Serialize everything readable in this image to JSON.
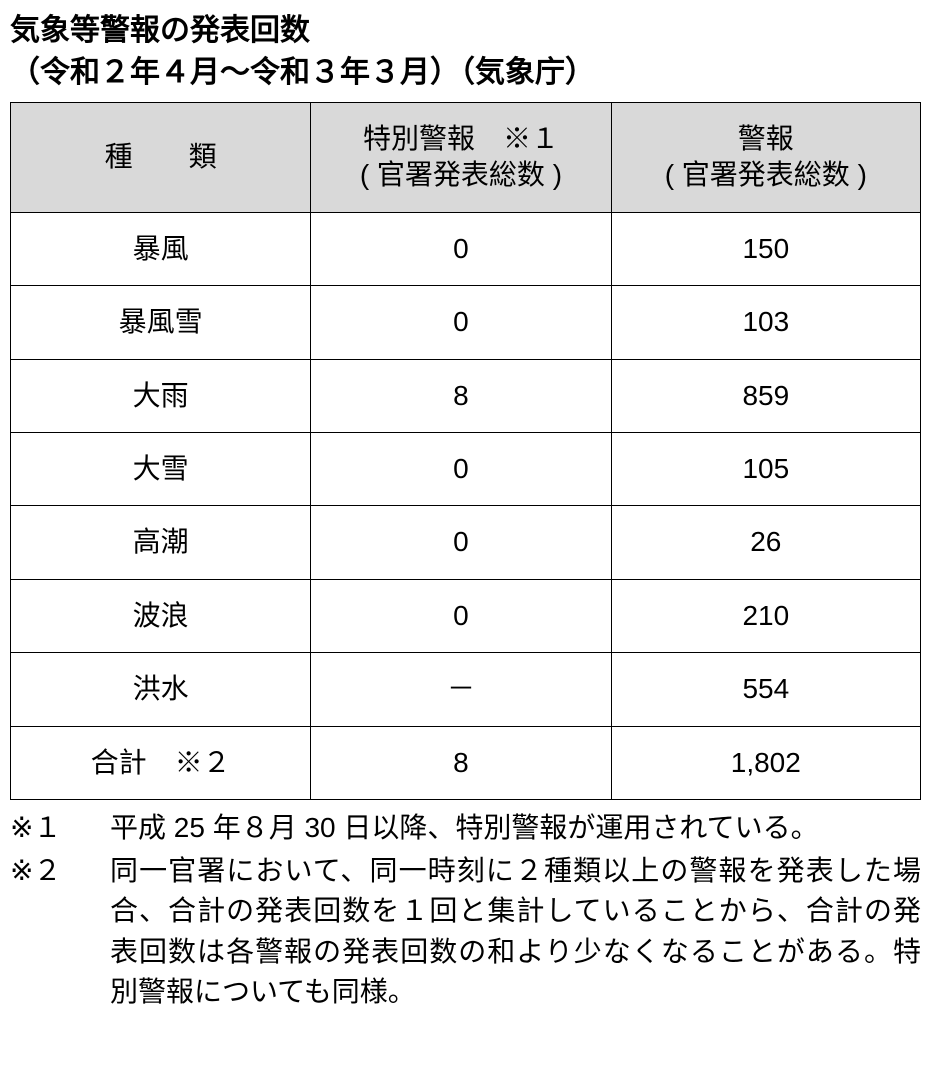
{
  "title_line1": "気象等警報の発表回数",
  "title_line2": "（令和２年４月～令和３年３月）（気象庁）",
  "table": {
    "header_bg": "#d9d9d9",
    "border_color": "#000000",
    "columns": [
      {
        "label_line1": "種　　類",
        "label_line2": ""
      },
      {
        "label_line1": "特別警報　※１",
        "label_line2": "( 官署発表総数 )"
      },
      {
        "label_line1": "警報",
        "label_line2": "( 官署発表総数 )"
      }
    ],
    "rows": [
      {
        "type": "暴風",
        "special": "0",
        "warning": "150"
      },
      {
        "type": "暴風雪",
        "special": "0",
        "warning": "103"
      },
      {
        "type": "大雨",
        "special": "8",
        "warning": "859"
      },
      {
        "type": "大雪",
        "special": "0",
        "warning": "105"
      },
      {
        "type": "高潮",
        "special": "0",
        "warning": "26"
      },
      {
        "type": "波浪",
        "special": "0",
        "warning": "210"
      },
      {
        "type": "洪水",
        "special": "－",
        "warning": "554"
      },
      {
        "type": "合計　※２",
        "special": "8",
        "warning": "1,802"
      }
    ]
  },
  "notes": [
    {
      "marker": "※１",
      "text": "平成 25 年８月 30 日以降、特別警報が運用されている。"
    },
    {
      "marker": "※２",
      "text": "同一官署において、同一時刻に２種類以上の警報を発表した場合、合計の発表回数を１回と集計していることから、合計の発表回数は各警報の発表回数の和より少なくなることがある。特別警報についても同様。"
    }
  ],
  "fontsize_title": 30,
  "fontsize_cell": 28,
  "fontsize_notes": 28,
  "background_color": "#ffffff",
  "text_color": "#000000"
}
